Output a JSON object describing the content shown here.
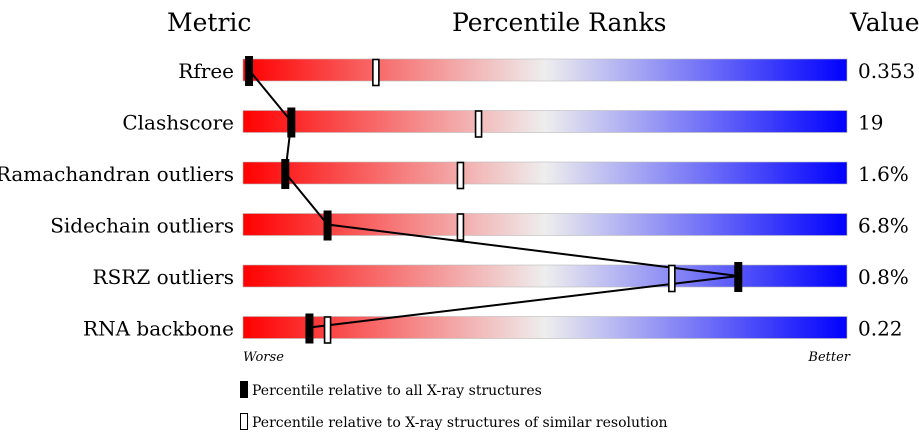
{
  "header": {
    "metric_title": "Metric",
    "ranks_title": "Percentile Ranks",
    "value_title": "Value"
  },
  "chart_data": {
    "type": "percentile-slider",
    "title": "Percentile Ranks",
    "xlim": [
      0,
      100
    ],
    "x_end_labels": {
      "left": "Worse",
      "right": "Better"
    },
    "gradient_colors": {
      "worse": "#ff0000",
      "middle": "#eeeeee",
      "better": "#0000ff"
    },
    "metrics": [
      {
        "name": "Rfree",
        "value_label": "0.353",
        "all_xray_percentile": 1,
        "similar_resolution_percentile": 22
      },
      {
        "name": "Clashscore",
        "value_label": "19",
        "all_xray_percentile": 8,
        "similar_resolution_percentile": 39
      },
      {
        "name": "Ramachandran outliers",
        "value_label": "1.6%",
        "all_xray_percentile": 7,
        "similar_resolution_percentile": 36
      },
      {
        "name": "Sidechain outliers",
        "value_label": "6.8%",
        "all_xray_percentile": 14,
        "similar_resolution_percentile": 36
      },
      {
        "name": "RSRZ outliers",
        "value_label": "0.8%",
        "all_xray_percentile": 82,
        "similar_resolution_percentile": 71
      },
      {
        "name": "RNA backbone",
        "value_label": "0.22",
        "all_xray_percentile": 11,
        "similar_resolution_percentile": 14
      }
    ]
  },
  "legend": {
    "all_xray": "Percentile relative to all X-ray structures",
    "similar_resolution": "Percentile relative to X-ray structures of similar resolution"
  }
}
